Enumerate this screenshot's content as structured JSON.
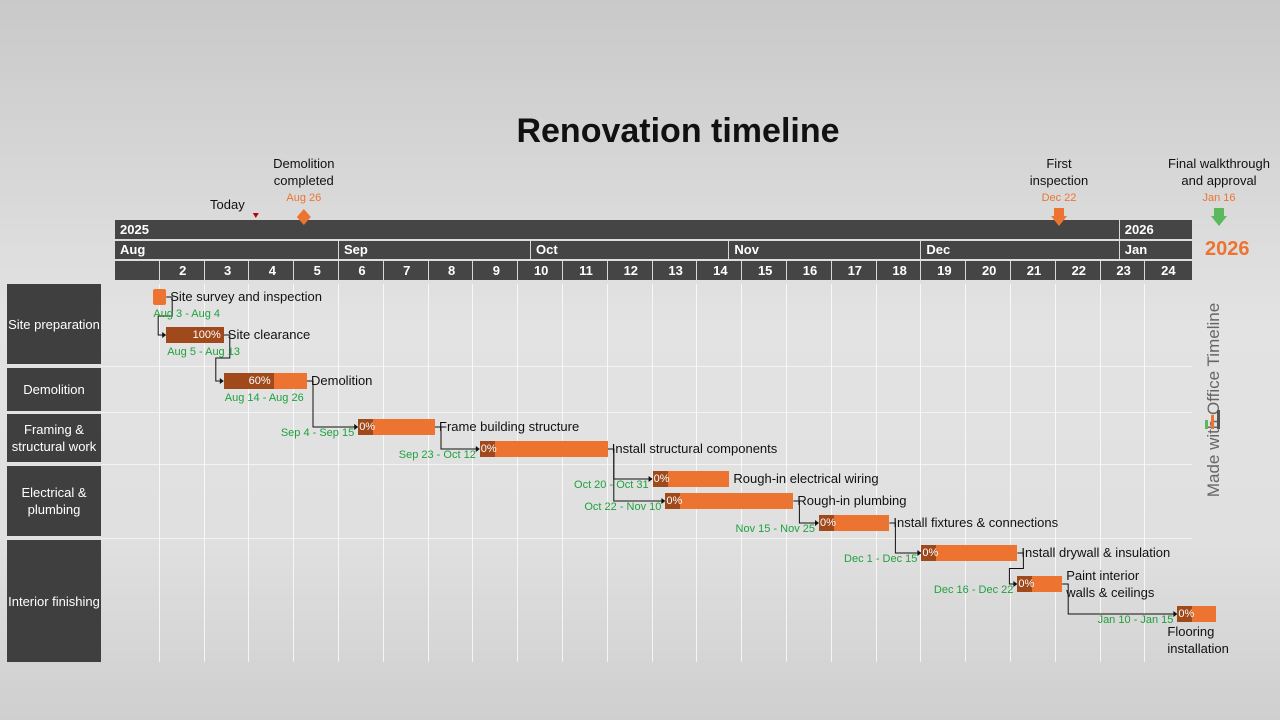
{
  "title": "Renovation timeline",
  "today_label": "Today",
  "side_year": "2026",
  "watermark": "Made with  Office Timeline",
  "colors": {
    "accent": "#ed7430",
    "done": "#a0491b",
    "date_green": "#1fa23e",
    "today": "#c00000",
    "milestone_final": "#5cb85c"
  },
  "chart_data": {
    "type": "gantt",
    "title": "Renovation timeline",
    "years": [
      {
        "label": "2025",
        "start": "2025-07-28"
      },
      {
        "label": "2026",
        "start": "2026-01-01"
      }
    ],
    "months": [
      {
        "label": "Aug",
        "start": "2025-07-28"
      },
      {
        "label": "Sep",
        "start": "2025-09-01"
      },
      {
        "label": "Oct",
        "start": "2025-10-01"
      },
      {
        "label": "Nov",
        "start": "2025-11-01"
      },
      {
        "label": "Dec",
        "start": "2025-12-01"
      },
      {
        "label": "Jan",
        "start": "2026-01-01"
      }
    ],
    "weeks": [
      "",
      "2",
      "3",
      "4",
      "5",
      "6",
      "7",
      "8",
      "9",
      "10",
      "11",
      "12",
      "13",
      "14",
      "15",
      "16",
      "17",
      "18",
      "19",
      "20",
      "21",
      "22",
      "23",
      "24"
    ],
    "range": [
      "2025-07-28",
      "2026-01-19"
    ],
    "today": "2025-08-19",
    "milestones": [
      {
        "label": "Demolition completed",
        "date": "2025-08-26",
        "date_label": "Aug 26",
        "shape": "diamond",
        "color": "#ed7430"
      },
      {
        "label": "First inspection",
        "date": "2025-12-22",
        "date_label": "Dec 22",
        "shape": "arrow-down",
        "color": "#ed7430"
      },
      {
        "label": "Final walkthrough and approval",
        "date": "2026-01-16",
        "date_label": "Jan 16",
        "shape": "arrow-down",
        "color": "#5cb85c"
      }
    ],
    "swimlanes": [
      {
        "label": "Site preparation"
      },
      {
        "label": "Demolition"
      },
      {
        "label": "Framing & structural work"
      },
      {
        "label": "Electrical & plumbing"
      },
      {
        "label": "Interior finishing"
      }
    ],
    "tasks": [
      {
        "name": "Site survey and inspection",
        "start": "2025-08-03",
        "end": "2025-08-04",
        "date_label": "Aug 3 - Aug 4",
        "percent": null
      },
      {
        "name": "Site clearance",
        "start": "2025-08-05",
        "end": "2025-08-13",
        "date_label": "Aug 5 - Aug 13",
        "percent": "100%"
      },
      {
        "name": "Demolition",
        "start": "2025-08-14",
        "end": "2025-08-26",
        "date_label": "Aug 14 - Aug 26",
        "percent": "60%"
      },
      {
        "name": "Frame building structure",
        "start": "2025-09-04",
        "end": "2025-09-15",
        "date_label": "Sep 4 - Sep 15",
        "percent": "0%"
      },
      {
        "name": "Install structural components",
        "start": "2025-09-23",
        "end": "2025-10-12",
        "date_label": "Sep 23 - Oct 12",
        "percent": "0%"
      },
      {
        "name": "Rough-in electrical wiring",
        "start": "2025-10-20",
        "end": "2025-10-31",
        "date_label": "Oct 20 - Oct 31",
        "percent": "0%"
      },
      {
        "name": "Rough-in plumbing",
        "start": "2025-10-22",
        "end": "2025-11-10",
        "date_label": "Oct 22 - Nov 10",
        "percent": "0%"
      },
      {
        "name": "Install fixtures & connections",
        "start": "2025-11-15",
        "end": "2025-11-25",
        "date_label": "Nov 15 - Nov 25",
        "percent": "0%"
      },
      {
        "name": "Install drywall & insulation",
        "start": "2025-12-01",
        "end": "2025-12-15",
        "date_label": "Dec 1 - Dec 15",
        "percent": "0%"
      },
      {
        "name": "Paint interior walls & ceilings",
        "start": "2025-12-16",
        "end": "2025-12-22",
        "date_label": "Dec 16 - Dec 22",
        "percent": "0%"
      },
      {
        "name": "Flooring installation",
        "start": "2026-01-10",
        "end": "2026-01-15",
        "date_label": "Jan 10 - Jan 15",
        "percent": "0%"
      }
    ]
  }
}
